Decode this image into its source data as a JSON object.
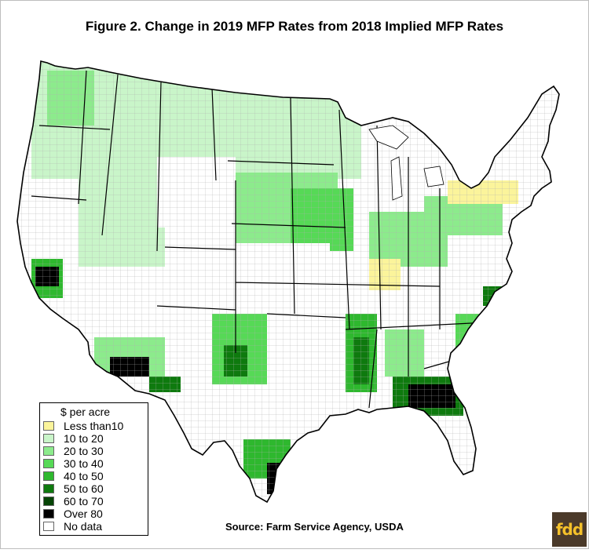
{
  "title": "Figure 2. Change in 2019 MFP Rates from 2018 Implied MFP Rates",
  "source": "Source:  Farm Service Agency, USDA",
  "logo_text": "fdd",
  "legend": {
    "title": "$ per acre",
    "items": [
      {
        "label": "Less than10",
        "color": "#fbf49b"
      },
      {
        "label": "10 to 20",
        "color": "#c9f5c9"
      },
      {
        "label": "20 to 30",
        "color": "#8ceb8c"
      },
      {
        "label": "30 to 40",
        "color": "#56d956"
      },
      {
        "label": "40 to 50",
        "color": "#2eb82e"
      },
      {
        "label": "50 to 60",
        "color": "#0e7a0e"
      },
      {
        "label": "60 to 70",
        "color": "#064406"
      },
      {
        "label": "Over 80",
        "color": "#000000"
      },
      {
        "label": "No data",
        "color": "#ffffff"
      }
    ]
  },
  "colors": {
    "border": "#000000",
    "county_line": "#9a9a9a",
    "logo_bg": "#4b3a2a",
    "logo_fg": "#f5c12a"
  }
}
